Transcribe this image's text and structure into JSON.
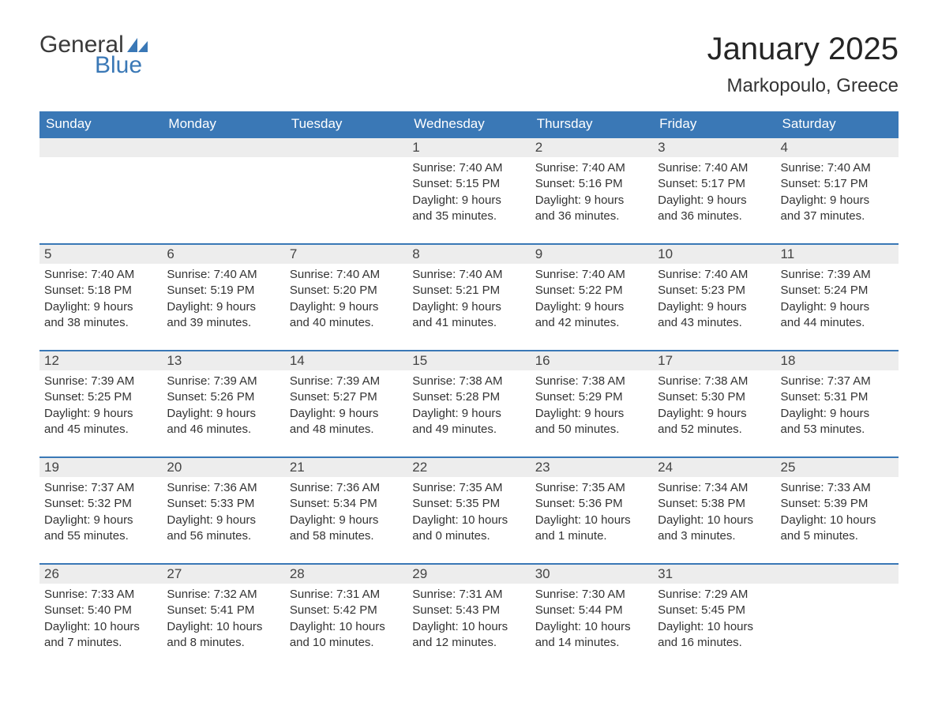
{
  "logo": {
    "text1": "General",
    "text2": "Blue"
  },
  "title": "January 2025",
  "location": "Markopoulo, Greece",
  "colors": {
    "header_bg": "#3a78b6",
    "header_fg": "#ffffff",
    "daynum_bg": "#ededed",
    "border": "#3a78b6",
    "logo_blue": "#3a78b6",
    "text": "#333333"
  },
  "day_headers": [
    "Sunday",
    "Monday",
    "Tuesday",
    "Wednesday",
    "Thursday",
    "Friday",
    "Saturday"
  ],
  "weeks": [
    [
      {
        "blank": true
      },
      {
        "blank": true
      },
      {
        "blank": true
      },
      {
        "n": "1",
        "sunrise": "Sunrise: 7:40 AM",
        "sunset": "Sunset: 5:15 PM",
        "dl1": "Daylight: 9 hours",
        "dl2": "and 35 minutes."
      },
      {
        "n": "2",
        "sunrise": "Sunrise: 7:40 AM",
        "sunset": "Sunset: 5:16 PM",
        "dl1": "Daylight: 9 hours",
        "dl2": "and 36 minutes."
      },
      {
        "n": "3",
        "sunrise": "Sunrise: 7:40 AM",
        "sunset": "Sunset: 5:17 PM",
        "dl1": "Daylight: 9 hours",
        "dl2": "and 36 minutes."
      },
      {
        "n": "4",
        "sunrise": "Sunrise: 7:40 AM",
        "sunset": "Sunset: 5:17 PM",
        "dl1": "Daylight: 9 hours",
        "dl2": "and 37 minutes."
      }
    ],
    [
      {
        "n": "5",
        "sunrise": "Sunrise: 7:40 AM",
        "sunset": "Sunset: 5:18 PM",
        "dl1": "Daylight: 9 hours",
        "dl2": "and 38 minutes."
      },
      {
        "n": "6",
        "sunrise": "Sunrise: 7:40 AM",
        "sunset": "Sunset: 5:19 PM",
        "dl1": "Daylight: 9 hours",
        "dl2": "and 39 minutes."
      },
      {
        "n": "7",
        "sunrise": "Sunrise: 7:40 AM",
        "sunset": "Sunset: 5:20 PM",
        "dl1": "Daylight: 9 hours",
        "dl2": "and 40 minutes."
      },
      {
        "n": "8",
        "sunrise": "Sunrise: 7:40 AM",
        "sunset": "Sunset: 5:21 PM",
        "dl1": "Daylight: 9 hours",
        "dl2": "and 41 minutes."
      },
      {
        "n": "9",
        "sunrise": "Sunrise: 7:40 AM",
        "sunset": "Sunset: 5:22 PM",
        "dl1": "Daylight: 9 hours",
        "dl2": "and 42 minutes."
      },
      {
        "n": "10",
        "sunrise": "Sunrise: 7:40 AM",
        "sunset": "Sunset: 5:23 PM",
        "dl1": "Daylight: 9 hours",
        "dl2": "and 43 minutes."
      },
      {
        "n": "11",
        "sunrise": "Sunrise: 7:39 AM",
        "sunset": "Sunset: 5:24 PM",
        "dl1": "Daylight: 9 hours",
        "dl2": "and 44 minutes."
      }
    ],
    [
      {
        "n": "12",
        "sunrise": "Sunrise: 7:39 AM",
        "sunset": "Sunset: 5:25 PM",
        "dl1": "Daylight: 9 hours",
        "dl2": "and 45 minutes."
      },
      {
        "n": "13",
        "sunrise": "Sunrise: 7:39 AM",
        "sunset": "Sunset: 5:26 PM",
        "dl1": "Daylight: 9 hours",
        "dl2": "and 46 minutes."
      },
      {
        "n": "14",
        "sunrise": "Sunrise: 7:39 AM",
        "sunset": "Sunset: 5:27 PM",
        "dl1": "Daylight: 9 hours",
        "dl2": "and 48 minutes."
      },
      {
        "n": "15",
        "sunrise": "Sunrise: 7:38 AM",
        "sunset": "Sunset: 5:28 PM",
        "dl1": "Daylight: 9 hours",
        "dl2": "and 49 minutes."
      },
      {
        "n": "16",
        "sunrise": "Sunrise: 7:38 AM",
        "sunset": "Sunset: 5:29 PM",
        "dl1": "Daylight: 9 hours",
        "dl2": "and 50 minutes."
      },
      {
        "n": "17",
        "sunrise": "Sunrise: 7:38 AM",
        "sunset": "Sunset: 5:30 PM",
        "dl1": "Daylight: 9 hours",
        "dl2": "and 52 minutes."
      },
      {
        "n": "18",
        "sunrise": "Sunrise: 7:37 AM",
        "sunset": "Sunset: 5:31 PM",
        "dl1": "Daylight: 9 hours",
        "dl2": "and 53 minutes."
      }
    ],
    [
      {
        "n": "19",
        "sunrise": "Sunrise: 7:37 AM",
        "sunset": "Sunset: 5:32 PM",
        "dl1": "Daylight: 9 hours",
        "dl2": "and 55 minutes."
      },
      {
        "n": "20",
        "sunrise": "Sunrise: 7:36 AM",
        "sunset": "Sunset: 5:33 PM",
        "dl1": "Daylight: 9 hours",
        "dl2": "and 56 minutes."
      },
      {
        "n": "21",
        "sunrise": "Sunrise: 7:36 AM",
        "sunset": "Sunset: 5:34 PM",
        "dl1": "Daylight: 9 hours",
        "dl2": "and 58 minutes."
      },
      {
        "n": "22",
        "sunrise": "Sunrise: 7:35 AM",
        "sunset": "Sunset: 5:35 PM",
        "dl1": "Daylight: 10 hours",
        "dl2": "and 0 minutes."
      },
      {
        "n": "23",
        "sunrise": "Sunrise: 7:35 AM",
        "sunset": "Sunset: 5:36 PM",
        "dl1": "Daylight: 10 hours",
        "dl2": "and 1 minute."
      },
      {
        "n": "24",
        "sunrise": "Sunrise: 7:34 AM",
        "sunset": "Sunset: 5:38 PM",
        "dl1": "Daylight: 10 hours",
        "dl2": "and 3 minutes."
      },
      {
        "n": "25",
        "sunrise": "Sunrise: 7:33 AM",
        "sunset": "Sunset: 5:39 PM",
        "dl1": "Daylight: 10 hours",
        "dl2": "and 5 minutes."
      }
    ],
    [
      {
        "n": "26",
        "sunrise": "Sunrise: 7:33 AM",
        "sunset": "Sunset: 5:40 PM",
        "dl1": "Daylight: 10 hours",
        "dl2": "and 7 minutes."
      },
      {
        "n": "27",
        "sunrise": "Sunrise: 7:32 AM",
        "sunset": "Sunset: 5:41 PM",
        "dl1": "Daylight: 10 hours",
        "dl2": "and 8 minutes."
      },
      {
        "n": "28",
        "sunrise": "Sunrise: 7:31 AM",
        "sunset": "Sunset: 5:42 PM",
        "dl1": "Daylight: 10 hours",
        "dl2": "and 10 minutes."
      },
      {
        "n": "29",
        "sunrise": "Sunrise: 7:31 AM",
        "sunset": "Sunset: 5:43 PM",
        "dl1": "Daylight: 10 hours",
        "dl2": "and 12 minutes."
      },
      {
        "n": "30",
        "sunrise": "Sunrise: 7:30 AM",
        "sunset": "Sunset: 5:44 PM",
        "dl1": "Daylight: 10 hours",
        "dl2": "and 14 minutes."
      },
      {
        "n": "31",
        "sunrise": "Sunrise: 7:29 AM",
        "sunset": "Sunset: 5:45 PM",
        "dl1": "Daylight: 10 hours",
        "dl2": "and 16 minutes."
      },
      {
        "blank": true
      }
    ]
  ]
}
